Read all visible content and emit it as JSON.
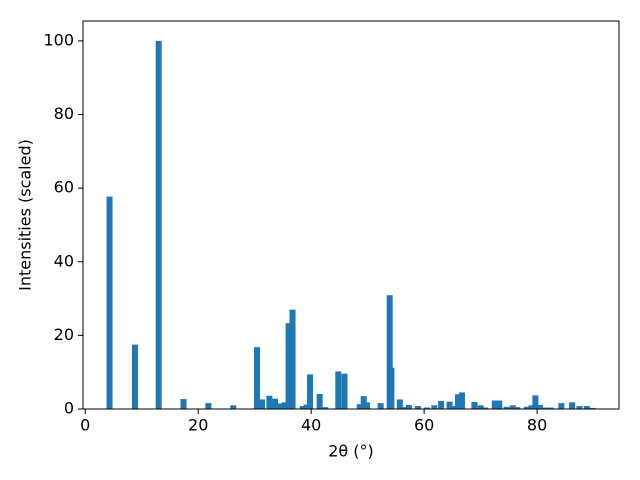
{
  "chart_data": {
    "type": "bar",
    "xlabel": "2θ (°)",
    "ylabel": "Intensities (scaled)",
    "x": [
      4.3,
      8.8,
      13.0,
      17.4,
      21.8,
      26.2,
      30.4,
      31.3,
      32.6,
      33.6,
      34.5,
      35.3,
      36.0,
      36.7,
      38.5,
      39.2,
      39.8,
      41.5,
      42.5,
      44.8,
      45.9,
      48.6,
      49.3,
      49.9,
      52.3,
      53.9,
      54.2,
      55.7,
      56.5,
      57.3,
      58.9,
      60.5,
      61.8,
      63.0,
      64.5,
      65.3,
      66.0,
      66.7,
      68.9,
      70.0,
      70.8,
      72.5,
      73.3,
      74.6,
      75.7,
      76.5,
      78.2,
      79.0,
      79.7,
      80.5,
      81.5,
      82.4,
      84.3,
      86.2,
      87.5,
      88.8,
      89.8
    ],
    "values": [
      57.7,
      17.5,
      100,
      2.7,
      1.6,
      1.0,
      16.8,
      2.6,
      3.6,
      2.8,
      1.5,
      1.8,
      23.3,
      27.0,
      0.8,
      1.2,
      9.4,
      4.1,
      0.5,
      10.2,
      9.6,
      1.3,
      3.5,
      1.8,
      1.6,
      30.9,
      11.2,
      2.6,
      0.5,
      1.1,
      0.8,
      0.4,
      1.0,
      2.2,
      2.0,
      0.8,
      4.0,
      4.5,
      1.9,
      1.0,
      0.4,
      2.3,
      2.3,
      0.6,
      1.0,
      0.5,
      0.6,
      1.0,
      3.7,
      1.1,
      0.4,
      0.4,
      1.6,
      1.8,
      0.8,
      0.8,
      0.3
    ],
    "color": "#1f77b4",
    "xlim": [
      -0.4,
      94.5
    ],
    "ylim": [
      0,
      105.4
    ],
    "xticks": [
      0,
      20,
      40,
      60,
      80
    ],
    "yticks": [
      0,
      20,
      40,
      60,
      80,
      100
    ]
  }
}
